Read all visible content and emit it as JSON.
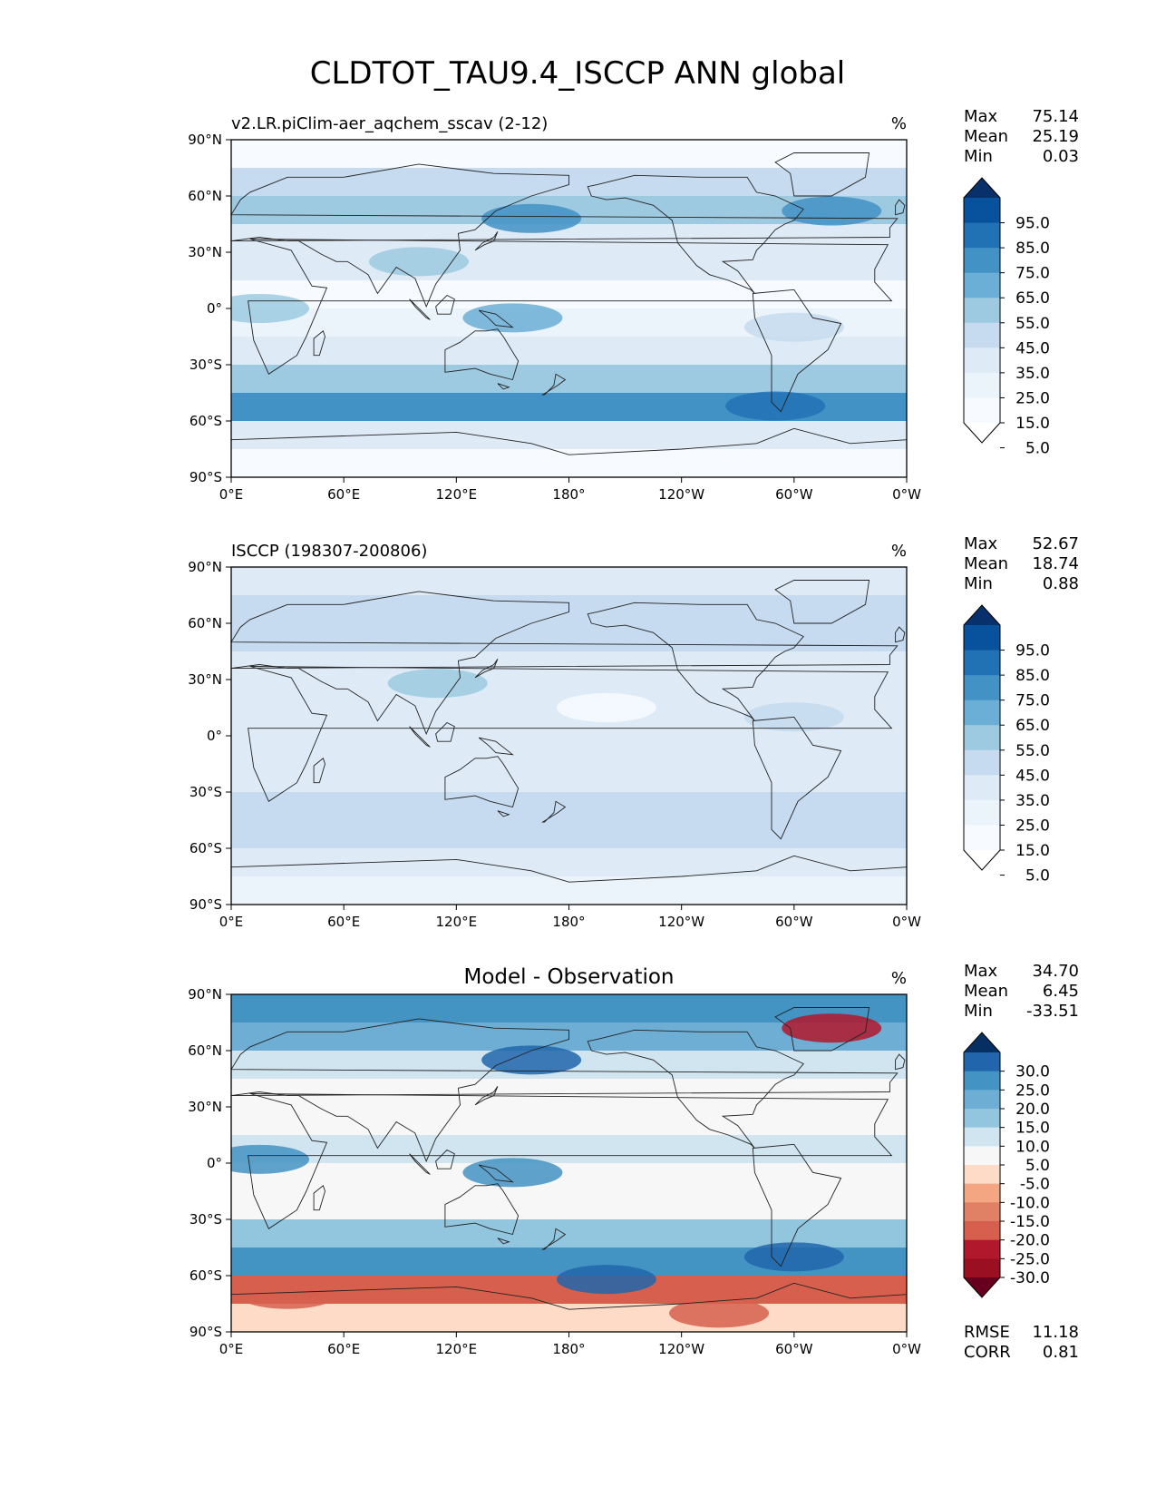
{
  "figure": {
    "title": "CLDTOT_TAU9.4_ISCCP ANN global"
  },
  "lat_ticks": [
    "90°N",
    "60°N",
    "30°N",
    "0°",
    "30°S",
    "60°S",
    "90°S"
  ],
  "lon_ticks": [
    "0°E",
    "60°E",
    "120°E",
    "180°",
    "120°W",
    "60°W",
    "0°W"
  ],
  "panels": [
    {
      "id": "model",
      "title_left": "v2.LR.piClim-aer_aqchem_sscav (2-12)",
      "title_center": "",
      "units": "%",
      "stats": [
        {
          "label": "Max",
          "value": "75.14"
        },
        {
          "label": "Mean",
          "value": "25.19"
        },
        {
          "label": "Min",
          "value": "0.03"
        }
      ],
      "colorbar": {
        "labels": [
          "95.0",
          "85.0",
          "75.0",
          "65.0",
          "55.0",
          "45.0",
          "35.0",
          "25.0",
          "15.0",
          "5.0"
        ],
        "colors": [
          "#08306b",
          "#08519c",
          "#2171b5",
          "#4292c6",
          "#6baed6",
          "#9ecae1",
          "#c6dbef",
          "#deebf7",
          "#ebf3fb",
          "#f7fbff",
          "#ffffff"
        ]
      },
      "field": {
        "band_colors": [
          "#f7fbff",
          "#c6dbef",
          "#9ecae1",
          "#deebf7",
          "#deebf7",
          "#f7fbff",
          "#ebf3fb",
          "#deebf7",
          "#9ecae1",
          "#4292c6",
          "#deebf7",
          "#f7fbff"
        ],
        "patches": [
          {
            "lon": 160,
            "lat": 48,
            "color": "#4292c6"
          },
          {
            "lon": 320,
            "lat": 52,
            "color": "#4292c6"
          },
          {
            "lon": 290,
            "lat": -52,
            "color": "#2171b5"
          },
          {
            "lon": 100,
            "lat": 25,
            "color": "#9ecae1"
          },
          {
            "lon": 150,
            "lat": -5,
            "color": "#6baed6"
          },
          {
            "lon": 15,
            "lat": 0,
            "color": "#9ecae1"
          },
          {
            "lon": 300,
            "lat": -10,
            "color": "#c6dbef"
          }
        ]
      }
    },
    {
      "id": "obs",
      "title_left": "ISCCP (198307-200806)",
      "title_center": "",
      "units": "%",
      "stats": [
        {
          "label": "Max",
          "value": "52.67"
        },
        {
          "label": "Mean",
          "value": "18.74"
        },
        {
          "label": "Min",
          "value": "0.88"
        }
      ],
      "colorbar": {
        "labels": [
          "95.0",
          "85.0",
          "75.0",
          "65.0",
          "55.0",
          "45.0",
          "35.0",
          "25.0",
          "15.0",
          "5.0"
        ],
        "colors": [
          "#08306b",
          "#08519c",
          "#2171b5",
          "#4292c6",
          "#6baed6",
          "#9ecae1",
          "#c6dbef",
          "#deebf7",
          "#ebf3fb",
          "#f7fbff",
          "#ffffff"
        ]
      },
      "field": {
        "band_colors": [
          "#deebf7",
          "#c6dbef",
          "#c6dbef",
          "#deebf7",
          "#deebf7",
          "#deebf7",
          "#deebf7",
          "#deebf7",
          "#c6dbef",
          "#c6dbef",
          "#deebf7",
          "#ebf3fb"
        ],
        "patches": [
          {
            "lon": 110,
            "lat": 28,
            "color": "#9ecae1"
          },
          {
            "lon": 300,
            "lat": 10,
            "color": "#c6dbef"
          },
          {
            "lon": 200,
            "lat": 15,
            "color": "#f7fbff"
          }
        ]
      }
    },
    {
      "id": "diff",
      "title_left": "",
      "title_center": "Model - Observation",
      "units": "%",
      "stats": [
        {
          "label": "Max",
          "value": "34.70"
        },
        {
          "label": "Mean",
          "value": "6.45"
        },
        {
          "label": "Min",
          "value": "-33.51"
        }
      ],
      "colorbar": {
        "labels": [
          "30.0",
          "25.0",
          "20.0",
          "15.0",
          "10.0",
          "5.0",
          "-5.0",
          "-10.0",
          "-15.0",
          "-20.0",
          "-25.0",
          "-30.0"
        ],
        "colors": [
          "#053061",
          "#2166ac",
          "#4393c3",
          "#6eaed4",
          "#92c5de",
          "#d1e5f0",
          "#f7f7f7",
          "#fddbc7",
          "#f4a582",
          "#e08064",
          "#d6604d",
          "#b2182b",
          "#9a0f22",
          "#67001f"
        ]
      },
      "field": {
        "band_colors": [
          "#4393c3",
          "#6eaed4",
          "#d1e5f0",
          "#f7f7f7",
          "#f7f7f7",
          "#d1e5f0",
          "#f7f7f7",
          "#f7f7f7",
          "#92c5de",
          "#4393c3",
          "#d6604d",
          "#fddbc7"
        ],
        "patches": [
          {
            "lon": 160,
            "lat": 55,
            "color": "#2166ac"
          },
          {
            "lon": 320,
            "lat": 72,
            "color": "#b2182b"
          },
          {
            "lon": 300,
            "lat": -50,
            "color": "#2166ac"
          },
          {
            "lon": 200,
            "lat": -62,
            "color": "#2166ac"
          },
          {
            "lon": 30,
            "lat": -70,
            "color": "#d6604d"
          },
          {
            "lon": 260,
            "lat": -80,
            "color": "#d6604d"
          },
          {
            "lon": 15,
            "lat": 2,
            "color": "#4393c3"
          },
          {
            "lon": 150,
            "lat": -5,
            "color": "#4393c3"
          }
        ]
      },
      "metrics": [
        {
          "label": "RMSE",
          "value": "11.18"
        },
        {
          "label": "CORR",
          "value": "0.81"
        }
      ]
    }
  ]
}
